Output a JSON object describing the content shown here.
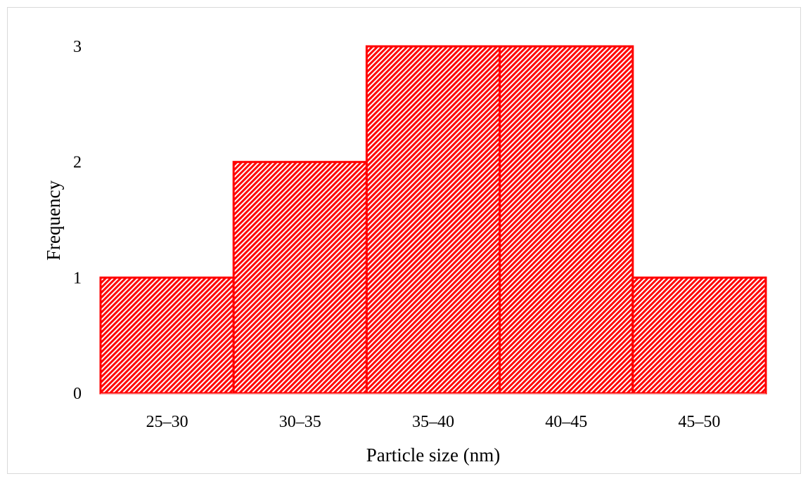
{
  "chart_data": {
    "type": "bar",
    "categories": [
      "25–30",
      "30–35",
      "35–40",
      "40–45",
      "45–50"
    ],
    "values": [
      1,
      2,
      3,
      3,
      1
    ],
    "title": "",
    "xlabel": "Particle size (nm)",
    "ylabel": "Frequency",
    "ylim": [
      0,
      3
    ],
    "yticks": [
      "0",
      "1",
      "2",
      "3"
    ],
    "grid": false,
    "legend": "none",
    "bar_color": "#ff0000",
    "bar_fill_pattern": "diagonal-hatch",
    "bar_gap": "none"
  }
}
